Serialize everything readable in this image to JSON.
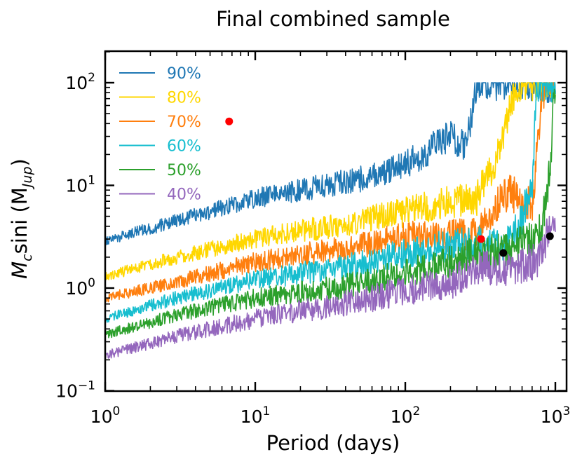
{
  "chart_data": {
    "type": "line",
    "title": "Final combined sample",
    "xlabel": "Period (days)",
    "ylabel_parts": {
      "main": "M",
      "sub1": "c",
      "mid": "sini (M",
      "sub2": "Jup",
      "end": ")"
    },
    "xscale": "log",
    "yscale": "log",
    "xlim": [
      1,
      1100
    ],
    "ylim": [
      0.1,
      200
    ],
    "x_ticks": [
      {
        "value": 1,
        "base": "10",
        "exp": "0"
      },
      {
        "value": 10,
        "base": "10",
        "exp": "1"
      },
      {
        "value": 100,
        "base": "10",
        "exp": "2"
      },
      {
        "value": 1000,
        "base": "10",
        "exp": "3"
      }
    ],
    "y_ticks": [
      {
        "value": 0.1,
        "base": "10",
        "exp": "−1"
      },
      {
        "value": 1,
        "base": "10",
        "exp": "0"
      },
      {
        "value": 10,
        "base": "10",
        "exp": "1"
      },
      {
        "value": 100,
        "base": "10",
        "exp": "2"
      }
    ],
    "legend_position": "upper-left",
    "series": [
      {
        "name": "90%",
        "color": "#1f77b4",
        "cap": 100,
        "anchors": [
          [
            1,
            2.9
          ],
          [
            3,
            4.5
          ],
          [
            10,
            7.5
          ],
          [
            50,
            11.5
          ],
          [
            100,
            16
          ],
          [
            200,
            30
          ],
          [
            250,
            25
          ],
          [
            280,
            50
          ],
          [
            300,
            100
          ],
          [
            1000,
            100
          ]
        ]
      },
      {
        "name": "80%",
        "color": "#ffd700",
        "cap": 100,
        "anchors": [
          [
            1,
            1.3
          ],
          [
            3,
            2.0
          ],
          [
            10,
            3.0
          ],
          [
            50,
            4.5
          ],
          [
            100,
            5.5
          ],
          [
            200,
            7.0
          ],
          [
            300,
            7.5
          ],
          [
            400,
            18
          ],
          [
            500,
            60
          ],
          [
            600,
            100
          ],
          [
            1000,
            100
          ]
        ]
      },
      {
        "name": "70%",
        "color": "#ff7f0e",
        "cap": 100,
        "anchors": [
          [
            1,
            0.8
          ],
          [
            3,
            1.15
          ],
          [
            10,
            1.8
          ],
          [
            50,
            2.6
          ],
          [
            100,
            3.2
          ],
          [
            200,
            3.2
          ],
          [
            300,
            3.5
          ],
          [
            400,
            6.5
          ],
          [
            500,
            8.5
          ],
          [
            700,
            6.5
          ],
          [
            800,
            50
          ],
          [
            850,
            100
          ],
          [
            1000,
            100
          ]
        ]
      },
      {
        "name": "60%",
        "color": "#17becf",
        "cap": 100,
        "anchors": [
          [
            1,
            0.5
          ],
          [
            3,
            0.8
          ],
          [
            10,
            1.2
          ],
          [
            50,
            1.7
          ],
          [
            100,
            2.2
          ],
          [
            200,
            2.6
          ],
          [
            300,
            2.8
          ],
          [
            500,
            2.8
          ],
          [
            600,
            5
          ],
          [
            700,
            10
          ],
          [
            750,
            100
          ],
          [
            1000,
            100
          ]
        ]
      },
      {
        "name": "50%",
        "color": "#2ca02c",
        "cap": 100,
        "anchors": [
          [
            1,
            0.35
          ],
          [
            3,
            0.55
          ],
          [
            10,
            0.8
          ],
          [
            50,
            1.1
          ],
          [
            100,
            1.4
          ],
          [
            200,
            1.8
          ],
          [
            300,
            2.2
          ],
          [
            500,
            2.3
          ],
          [
            800,
            3.5
          ],
          [
            900,
            10
          ],
          [
            1000,
            100
          ]
        ]
      },
      {
        "name": "40%",
        "color": "#9467bd",
        "cap": 5,
        "anchors": [
          [
            1,
            0.22
          ],
          [
            3,
            0.34
          ],
          [
            10,
            0.5
          ],
          [
            50,
            0.75
          ],
          [
            100,
            0.95
          ],
          [
            200,
            1.1
          ],
          [
            300,
            1.6
          ],
          [
            500,
            1.55
          ],
          [
            800,
            1.9
          ],
          [
            900,
            3.5
          ],
          [
            1000,
            4.7
          ]
        ]
      }
    ],
    "points": [
      {
        "x": 6.7,
        "y": 42,
        "color": "#ff0000"
      },
      {
        "x": 320,
        "y": 3.0,
        "color": "#ff0000"
      },
      {
        "x": 450,
        "y": 2.2,
        "color": "#000000"
      },
      {
        "x": 920,
        "y": 3.2,
        "color": "#000000"
      }
    ]
  }
}
